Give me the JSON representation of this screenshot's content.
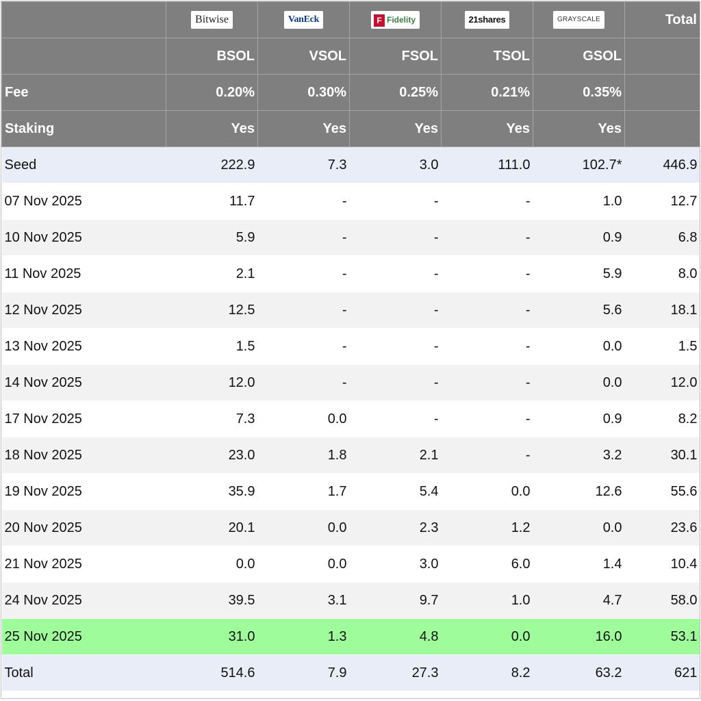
{
  "chart_data": {
    "type": "table",
    "issuers": [
      {
        "logo_text": "Bitwise",
        "logo_icon": "bitwise-logo",
        "ticker": "BSOL",
        "fee": "0.20%",
        "staking": "Yes"
      },
      {
        "logo_text": "VanEck",
        "logo_icon": "vaneck-logo",
        "ticker": "VSOL",
        "fee": "0.30%",
        "staking": "Yes"
      },
      {
        "logo_text": "Fidelity",
        "logo_icon": "fidelity-logo",
        "ticker": "FSOL",
        "fee": "0.25%",
        "staking": "Yes"
      },
      {
        "logo_text": "21shares",
        "logo_icon": "21shares-logo",
        "ticker": "TSOL",
        "fee": "0.21%",
        "staking": "Yes"
      },
      {
        "logo_text": "GRAYSCALE",
        "logo_icon": "grayscale-logo",
        "ticker": "GSOL",
        "fee": "0.35%",
        "staking": "Yes"
      }
    ],
    "header_total": "Total",
    "fee_label": "Fee",
    "staking_label": "Staking",
    "rows": [
      {
        "label": "Seed",
        "values": [
          "222.9",
          "7.3",
          "3.0",
          "111.0",
          "102.7*"
        ],
        "total": "446.9",
        "style": "seed"
      },
      {
        "label": "07 Nov 2025",
        "values": [
          "11.7",
          "-",
          "-",
          "-",
          "1.0"
        ],
        "total": "12.7",
        "style": "plain"
      },
      {
        "label": "10 Nov 2025",
        "values": [
          "5.9",
          "-",
          "-",
          "-",
          "0.9"
        ],
        "total": "6.8",
        "style": "alt"
      },
      {
        "label": "11 Nov 2025",
        "values": [
          "2.1",
          "-",
          "-",
          "-",
          "5.9"
        ],
        "total": "8.0",
        "style": "plain"
      },
      {
        "label": "12 Nov 2025",
        "values": [
          "12.5",
          "-",
          "-",
          "-",
          "5.6"
        ],
        "total": "18.1",
        "style": "alt"
      },
      {
        "label": "13 Nov 2025",
        "values": [
          "1.5",
          "-",
          "-",
          "-",
          "0.0"
        ],
        "total": "1.5",
        "style": "plain"
      },
      {
        "label": "14 Nov 2025",
        "values": [
          "12.0",
          "-",
          "-",
          "-",
          "0.0"
        ],
        "total": "12.0",
        "style": "alt"
      },
      {
        "label": "17 Nov 2025",
        "values": [
          "7.3",
          "0.0",
          "-",
          "-",
          "0.9"
        ],
        "total": "8.2",
        "style": "plain"
      },
      {
        "label": "18 Nov 2025",
        "values": [
          "23.0",
          "1.8",
          "2.1",
          "-",
          "3.2"
        ],
        "total": "30.1",
        "style": "alt"
      },
      {
        "label": "19 Nov 2025",
        "values": [
          "35.9",
          "1.7",
          "5.4",
          "0.0",
          "12.6"
        ],
        "total": "55.6",
        "style": "plain"
      },
      {
        "label": "20 Nov 2025",
        "values": [
          "20.1",
          "0.0",
          "2.3",
          "1.2",
          "0.0"
        ],
        "total": "23.6",
        "style": "alt"
      },
      {
        "label": "21 Nov 2025",
        "values": [
          "0.0",
          "0.0",
          "3.0",
          "6.0",
          "1.4"
        ],
        "total": "10.4",
        "style": "plain"
      },
      {
        "label": "24 Nov 2025",
        "values": [
          "39.5",
          "3.1",
          "9.7",
          "1.0",
          "4.7"
        ],
        "total": "58.0",
        "style": "alt"
      },
      {
        "label": "25 Nov 2025",
        "values": [
          "31.0",
          "1.3",
          "4.8",
          "0.0",
          "16.0"
        ],
        "total": "53.1",
        "style": "highlight"
      },
      {
        "label": "Total",
        "values": [
          "514.6",
          "7.9",
          "27.3",
          "8.2",
          "63.2"
        ],
        "total": "621",
        "style": "total"
      }
    ]
  },
  "colors": {
    "header_bg": "#7f7f7f",
    "seed_bg": "#e8edf7",
    "alt_bg": "#f2f2f2",
    "highlight_bg": "#9efc9a",
    "total_bg": "#e8edf7"
  }
}
